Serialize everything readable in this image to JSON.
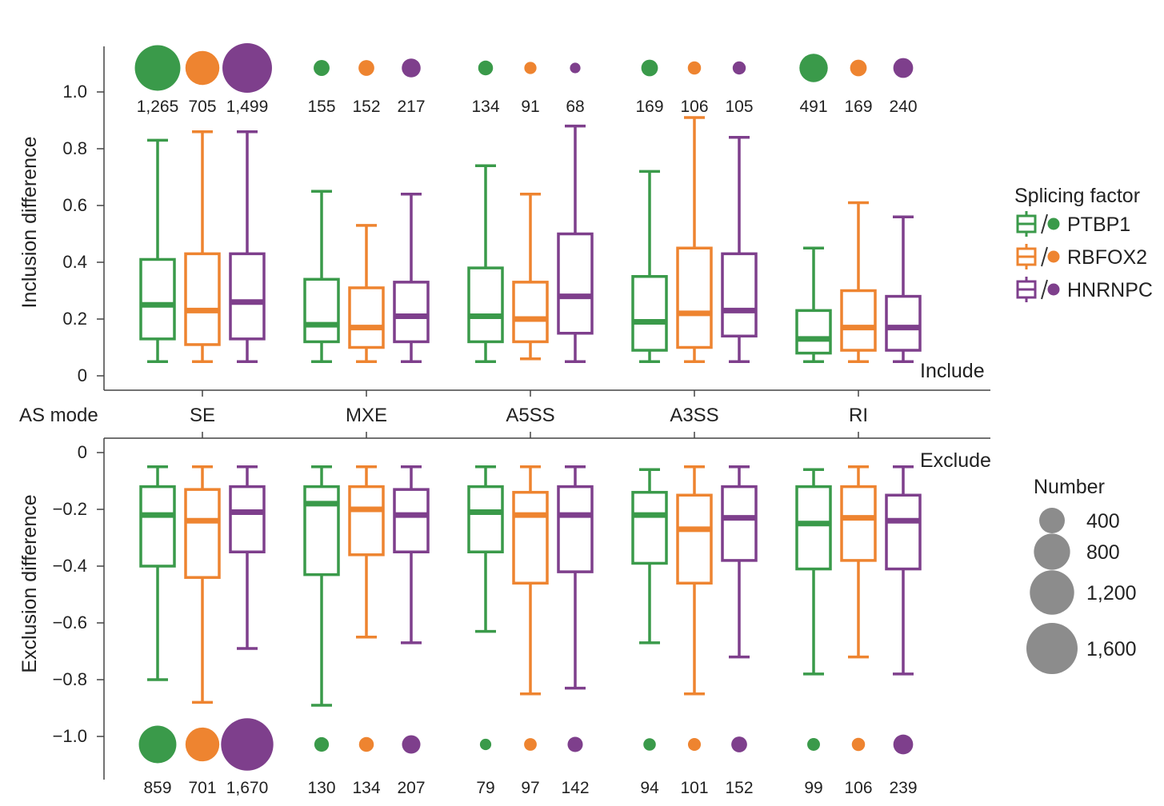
{
  "chart_data": {
    "type": "box",
    "row_label": "AS mode",
    "categories": [
      "SE",
      "MXE",
      "A5SS",
      "A3SS",
      "RI"
    ],
    "series": [
      {
        "name": "PTBP1",
        "color": "#3a9a4a"
      },
      {
        "name": "RBFOX2",
        "color": "#ee8430"
      },
      {
        "name": "HNRNPC",
        "color": "#7e3f8c"
      }
    ],
    "panels": [
      {
        "id": "include",
        "label": "Include",
        "ylabel": "Inclusion difference",
        "ylim": [
          0,
          1.0
        ],
        "yticks": [
          0,
          0.2,
          0.4,
          0.6,
          0.8,
          1.0
        ],
        "ytick_labels": [
          "0",
          "0.2",
          "0.4",
          "0.6",
          "0.8",
          "1.0"
        ],
        "counts": [
          [
            1265,
            705,
            1499
          ],
          [
            155,
            152,
            217
          ],
          [
            134,
            91,
            68
          ],
          [
            169,
            106,
            105
          ],
          [
            491,
            169,
            240
          ]
        ],
        "count_labels": [
          [
            "1,265",
            "705",
            "1,499"
          ],
          [
            "155",
            "152",
            "217"
          ],
          [
            "134",
            "91",
            "68"
          ],
          [
            "169",
            "106",
            "105"
          ],
          [
            "491",
            "169",
            "240"
          ]
        ],
        "boxes": [
          [
            [
              0.05,
              0.13,
              0.25,
              0.41,
              0.83
            ],
            [
              0.05,
              0.11,
              0.23,
              0.43,
              0.86
            ],
            [
              0.05,
              0.13,
              0.26,
              0.43,
              0.86
            ]
          ],
          [
            [
              0.05,
              0.12,
              0.18,
              0.34,
              0.65
            ],
            [
              0.05,
              0.1,
              0.17,
              0.31,
              0.53
            ],
            [
              0.05,
              0.12,
              0.21,
              0.33,
              0.64
            ]
          ],
          [
            [
              0.05,
              0.12,
              0.21,
              0.38,
              0.74
            ],
            [
              0.06,
              0.12,
              0.2,
              0.33,
              0.64
            ],
            [
              0.05,
              0.15,
              0.28,
              0.5,
              0.88
            ]
          ],
          [
            [
              0.05,
              0.09,
              0.19,
              0.35,
              0.72
            ],
            [
              0.05,
              0.1,
              0.22,
              0.45,
              0.91
            ],
            [
              0.05,
              0.14,
              0.23,
              0.43,
              0.84
            ]
          ],
          [
            [
              0.05,
              0.08,
              0.13,
              0.23,
              0.45
            ],
            [
              0.05,
              0.09,
              0.17,
              0.3,
              0.61
            ],
            [
              0.05,
              0.09,
              0.17,
              0.28,
              0.56
            ]
          ]
        ]
      },
      {
        "id": "exclude",
        "label": "Exclude",
        "ylabel": "Exclusion difference",
        "ylim": [
          -1.0,
          0
        ],
        "yticks": [
          0,
          -0.2,
          -0.4,
          -0.6,
          -0.8,
          -1.0
        ],
        "ytick_labels": [
          "0",
          "−0.2",
          "−0.4",
          "−0.6",
          "−0.8",
          "−1.0"
        ],
        "counts": [
          [
            859,
            701,
            1670
          ],
          [
            130,
            134,
            207
          ],
          [
            79,
            97,
            142
          ],
          [
            94,
            101,
            152
          ],
          [
            99,
            106,
            239
          ]
        ],
        "count_labels": [
          [
            "859",
            "701",
            "1,670"
          ],
          [
            "130",
            "134",
            "207"
          ],
          [
            "79",
            "97",
            "142"
          ],
          [
            "94",
            "101",
            "152"
          ],
          [
            "99",
            "106",
            "239"
          ]
        ],
        "boxes": [
          [
            [
              -0.8,
              -0.4,
              -0.22,
              -0.12,
              -0.05
            ],
            [
              -0.88,
              -0.44,
              -0.24,
              -0.13,
              -0.05
            ],
            [
              -0.69,
              -0.35,
              -0.21,
              -0.12,
              -0.05
            ]
          ],
          [
            [
              -0.89,
              -0.43,
              -0.18,
              -0.12,
              -0.05
            ],
            [
              -0.65,
              -0.36,
              -0.2,
              -0.12,
              -0.05
            ],
            [
              -0.67,
              -0.35,
              -0.22,
              -0.13,
              -0.05
            ]
          ],
          [
            [
              -0.63,
              -0.35,
              -0.21,
              -0.12,
              -0.05
            ],
            [
              -0.85,
              -0.46,
              -0.22,
              -0.14,
              -0.05
            ],
            [
              -0.83,
              -0.42,
              -0.22,
              -0.12,
              -0.05
            ]
          ],
          [
            [
              -0.67,
              -0.39,
              -0.22,
              -0.14,
              -0.06
            ],
            [
              -0.85,
              -0.46,
              -0.27,
              -0.15,
              -0.05
            ],
            [
              -0.72,
              -0.38,
              -0.23,
              -0.12,
              -0.05
            ]
          ],
          [
            [
              -0.78,
              -0.41,
              -0.25,
              -0.12,
              -0.06
            ],
            [
              -0.72,
              -0.38,
              -0.23,
              -0.12,
              -0.05
            ],
            [
              -0.78,
              -0.41,
              -0.24,
              -0.15,
              -0.05
            ]
          ]
        ]
      }
    ],
    "legend_title": "Splicing factor",
    "size_legend": {
      "title": "Number",
      "values": [
        400,
        800,
        1200,
        1600
      ],
      "labels": [
        "400",
        "800",
        "1,200",
        "1,600"
      ],
      "color": "#8c8c8c"
    }
  }
}
